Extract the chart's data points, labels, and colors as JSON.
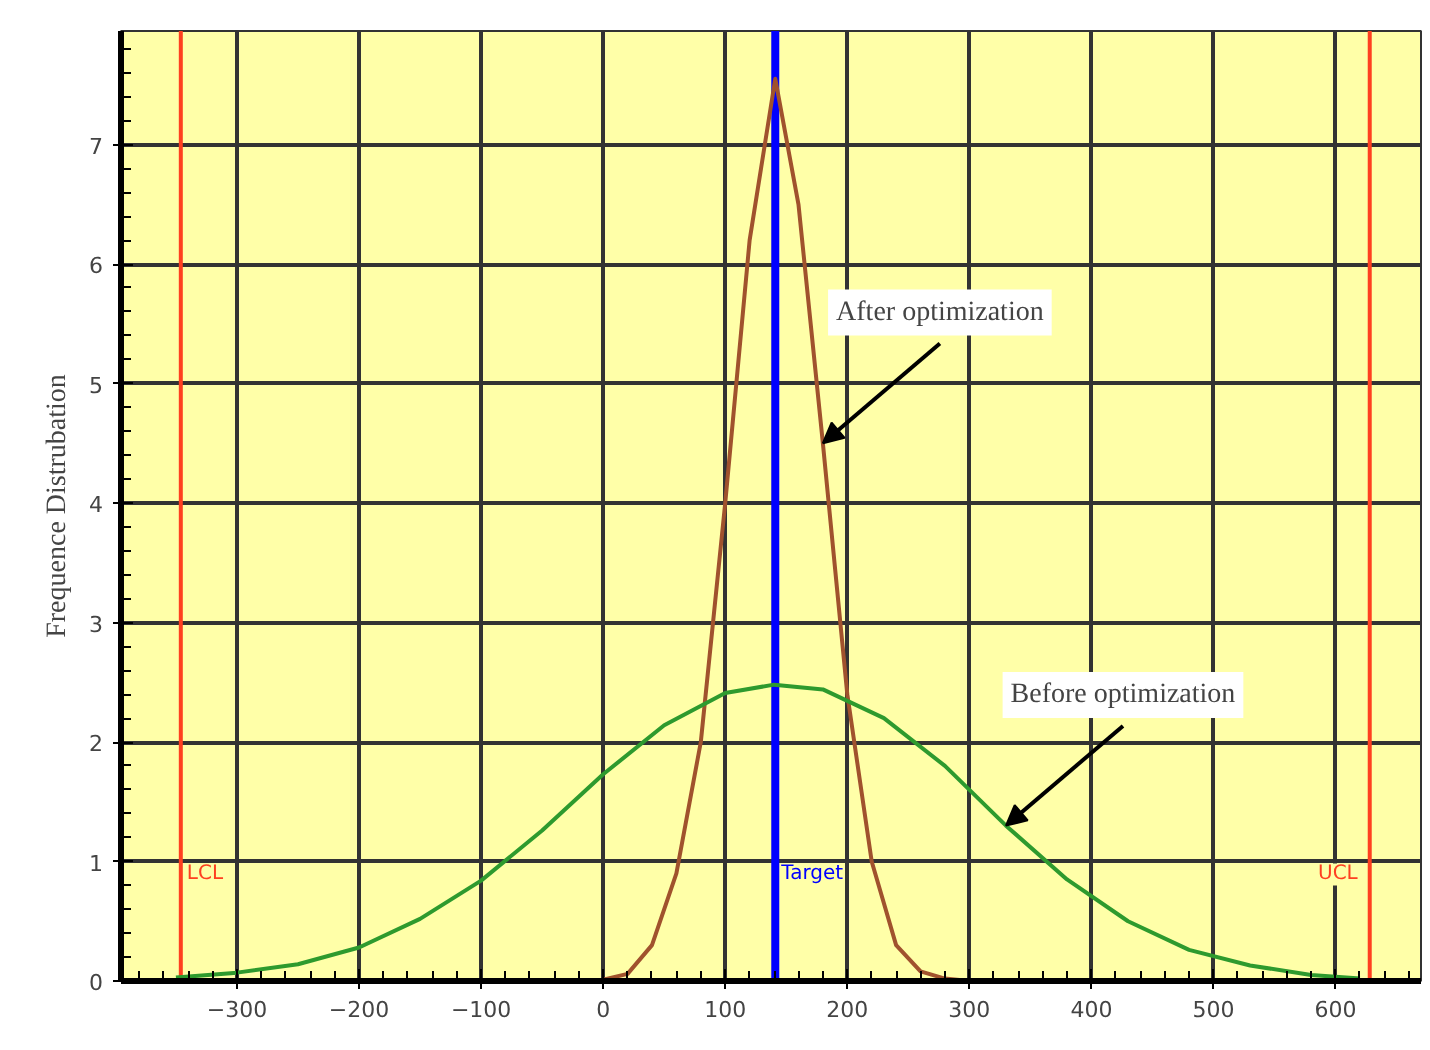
{
  "chart_data": {
    "type": "line",
    "ylabel": "Frequence Distrubation",
    "xlim": [
      -395,
      670
    ],
    "ylim": [
      0,
      7.95
    ],
    "xticks": [
      -300,
      -200,
      -100,
      0,
      100,
      200,
      300,
      400,
      500,
      600
    ],
    "yticks": [
      0,
      1,
      2,
      3,
      4,
      5,
      6,
      7
    ],
    "grid": true,
    "marker": "none",
    "line_style": "solid",
    "series": [
      {
        "color": "#a0522d",
        "x": [
          -30,
          0,
          20,
          40,
          60,
          80,
          100,
          120,
          141,
          160,
          180,
          200,
          220,
          240,
          260,
          280,
          300
        ],
        "values": [
          0.0,
          0.01,
          0.06,
          0.3,
          0.9,
          2.0,
          4.0,
          6.2,
          7.55,
          6.5,
          4.5,
          2.4,
          1.0,
          0.3,
          0.08,
          0.02,
          0.0
        ]
      },
      {
        "color": "#2e9a2e",
        "x": [
          -350,
          -300,
          -250,
          -200,
          -150,
          -100,
          -50,
          0,
          50,
          100,
          140,
          180,
          230,
          280,
          330,
          380,
          430,
          480,
          530,
          580,
          620
        ],
        "values": [
          0.03,
          0.07,
          0.14,
          0.28,
          0.52,
          0.84,
          1.26,
          1.73,
          2.14,
          2.41,
          2.48,
          2.44,
          2.2,
          1.8,
          1.3,
          0.85,
          0.5,
          0.26,
          0.13,
          0.05,
          0.02
        ]
      }
    ],
    "ref_lines": [
      {
        "axis": "x",
        "value": -346,
        "label": "LCL",
        "color": "#ff4020"
      },
      {
        "axis": "x",
        "value": 141,
        "label": "Target",
        "color": "#0000ff"
      },
      {
        "axis": "x",
        "value": 628,
        "label": "UCL",
        "color": "#ff4020"
      }
    ],
    "annotations": [
      {
        "text": "After optimization",
        "x": 180,
        "y": 4.5
      },
      {
        "text": "Before optimization",
        "x": 330,
        "y": 1.3
      }
    ]
  }
}
